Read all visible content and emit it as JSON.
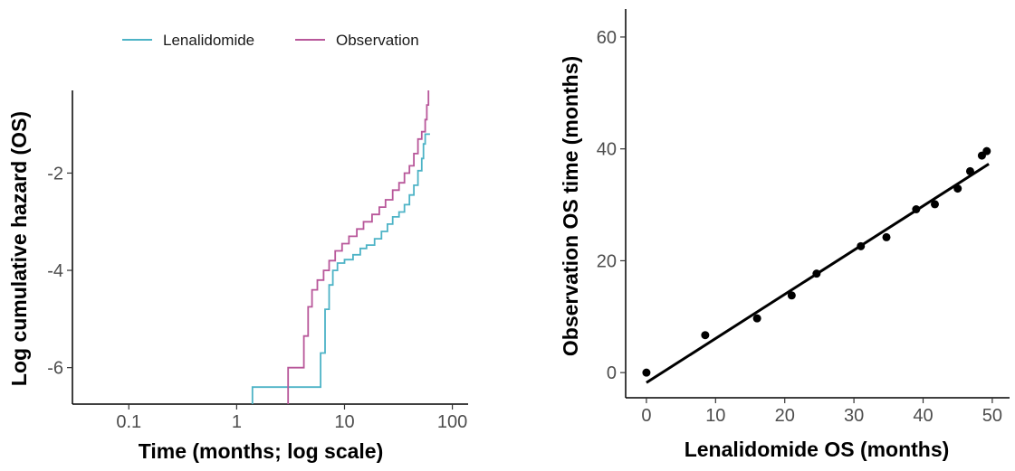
{
  "chart_data": [
    {
      "type": "line",
      "xlabel": "Time (months; log scale)",
      "ylabel": "Log cumulative hazard (OS)",
      "x_scale": "log",
      "xlim": [
        0.03,
        140
      ],
      "ylim": [
        -6.75,
        -0.3
      ],
      "x_ticks": [
        {
          "value": 0.1,
          "label": "0.1"
        },
        {
          "value": 1,
          "label": "1"
        },
        {
          "value": 10,
          "label": "10"
        },
        {
          "value": 100,
          "label": "100"
        }
      ],
      "y_ticks": [
        {
          "value": -6,
          "label": "-6"
        },
        {
          "value": -4,
          "label": "-4"
        },
        {
          "value": -2,
          "label": "-2"
        }
      ],
      "grid": false,
      "legend_position": "top",
      "series": [
        {
          "name": "Lenalidomide",
          "color": "#4db3c6",
          "points": [
            [
              1.4,
              -6.75
            ],
            [
              1.4,
              -6.4
            ],
            [
              6.0,
              -6.4
            ],
            [
              6.0,
              -5.7
            ],
            [
              6.6,
              -5.7
            ],
            [
              6.6,
              -4.8
            ],
            [
              7.2,
              -4.8
            ],
            [
              7.2,
              -4.3
            ],
            [
              7.8,
              -4.3
            ],
            [
              7.8,
              -4.0
            ],
            [
              8.6,
              -4.0
            ],
            [
              8.6,
              -3.85
            ],
            [
              10.0,
              -3.85
            ],
            [
              10.0,
              -3.78
            ],
            [
              12.0,
              -3.78
            ],
            [
              12.0,
              -3.68
            ],
            [
              14.0,
              -3.68
            ],
            [
              14.0,
              -3.55
            ],
            [
              16.0,
              -3.55
            ],
            [
              16.0,
              -3.48
            ],
            [
              19.0,
              -3.48
            ],
            [
              19.0,
              -3.35
            ],
            [
              22.0,
              -3.35
            ],
            [
              22.0,
              -3.2
            ],
            [
              25.0,
              -3.2
            ],
            [
              25.0,
              -3.05
            ],
            [
              28.0,
              -3.05
            ],
            [
              28.0,
              -2.9
            ],
            [
              32.0,
              -2.9
            ],
            [
              32.0,
              -2.8
            ],
            [
              36.0,
              -2.8
            ],
            [
              36.0,
              -2.65
            ],
            [
              40.0,
              -2.65
            ],
            [
              40.0,
              -2.45
            ],
            [
              44.0,
              -2.45
            ],
            [
              44.0,
              -2.25
            ],
            [
              48.0,
              -2.25
            ],
            [
              48.0,
              -1.95
            ],
            [
              52.0,
              -1.95
            ],
            [
              52.0,
              -1.7
            ],
            [
              54.0,
              -1.7
            ],
            [
              54.0,
              -1.4
            ],
            [
              56.0,
              -1.4
            ],
            [
              56.0,
              -1.2
            ],
            [
              62.0,
              -1.2
            ]
          ]
        },
        {
          "name": "Observation",
          "color": "#b8579a",
          "points": [
            [
              3.0,
              -6.75
            ],
            [
              3.0,
              -6.0
            ],
            [
              4.2,
              -6.0
            ],
            [
              4.2,
              -5.35
            ],
            [
              4.6,
              -5.35
            ],
            [
              4.6,
              -4.75
            ],
            [
              5.0,
              -4.75
            ],
            [
              5.0,
              -4.4
            ],
            [
              5.6,
              -4.4
            ],
            [
              5.6,
              -4.2
            ],
            [
              6.4,
              -4.2
            ],
            [
              6.4,
              -4.0
            ],
            [
              7.2,
              -4.0
            ],
            [
              7.2,
              -3.8
            ],
            [
              8.2,
              -3.8
            ],
            [
              8.2,
              -3.6
            ],
            [
              9.5,
              -3.6
            ],
            [
              9.5,
              -3.45
            ],
            [
              11.0,
              -3.45
            ],
            [
              11.0,
              -3.3
            ],
            [
              13.0,
              -3.3
            ],
            [
              13.0,
              -3.15
            ],
            [
              15.0,
              -3.15
            ],
            [
              15.0,
              -3.0
            ],
            [
              18.0,
              -3.0
            ],
            [
              18.0,
              -2.85
            ],
            [
              21.0,
              -2.85
            ],
            [
              21.0,
              -2.7
            ],
            [
              24.0,
              -2.7
            ],
            [
              24.0,
              -2.55
            ],
            [
              28.0,
              -2.55
            ],
            [
              28.0,
              -2.35
            ],
            [
              32.0,
              -2.35
            ],
            [
              32.0,
              -2.2
            ],
            [
              36.0,
              -2.2
            ],
            [
              36.0,
              -2.0
            ],
            [
              40.0,
              -2.0
            ],
            [
              40.0,
              -1.85
            ],
            [
              44.0,
              -1.85
            ],
            [
              44.0,
              -1.6
            ],
            [
              48.0,
              -1.6
            ],
            [
              48.0,
              -1.3
            ],
            [
              52.0,
              -1.3
            ],
            [
              52.0,
              -1.15
            ],
            [
              56.0,
              -1.15
            ],
            [
              56.0,
              -0.9
            ],
            [
              58.0,
              -0.9
            ],
            [
              58.0,
              -0.6
            ],
            [
              60.0,
              -0.6
            ],
            [
              60.0,
              -0.3
            ]
          ]
        }
      ]
    },
    {
      "type": "scatter",
      "xlabel": "Lenalidomide OS (months)",
      "ylabel": "Observation OS time (months)",
      "xlim": [
        -3,
        52.5
      ],
      "ylim": [
        -4.5,
        65
      ],
      "x_ticks": [
        {
          "value": 0,
          "label": "0"
        },
        {
          "value": 10,
          "label": "10"
        },
        {
          "value": 20,
          "label": "20"
        },
        {
          "value": 30,
          "label": "30"
        },
        {
          "value": 40,
          "label": "40"
        },
        {
          "value": 50,
          "label": "50"
        }
      ],
      "y_ticks": [
        {
          "value": 0,
          "label": "0"
        },
        {
          "value": 20,
          "label": "20"
        },
        {
          "value": 40,
          "label": "40"
        },
        {
          "value": 60,
          "label": "60"
        }
      ],
      "grid": false,
      "points": [
        [
          0,
          0
        ],
        [
          8.5,
          6.7
        ],
        [
          16,
          9.7
        ],
        [
          21,
          13.8
        ],
        [
          24.6,
          17.7
        ],
        [
          31,
          22.6
        ],
        [
          34.7,
          24.2
        ],
        [
          39,
          29.2
        ],
        [
          41.7,
          30.1
        ],
        [
          45,
          32.9
        ],
        [
          46.8,
          36.0
        ],
        [
          48.5,
          38.8
        ],
        [
          49.2,
          39.6
        ]
      ],
      "fit_line": {
        "x": [
          0,
          49.5
        ],
        "y": [
          -1.8,
          37.3
        ]
      },
      "color": "#000000"
    }
  ]
}
